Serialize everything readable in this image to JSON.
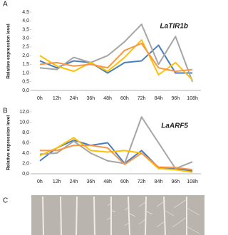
{
  "chart_data": [
    {
      "type": "line",
      "panel": "A",
      "title": "LaTIR1b",
      "y_label": "Relative expression level",
      "categories": [
        "0h",
        "12h",
        "24h",
        "36h",
        "48h",
        "60h",
        "72h",
        "84h",
        "96h",
        "108h"
      ],
      "series": [
        {
          "color": "#4a7ebb",
          "values": [
            1.7,
            1.3,
            1.7,
            1.6,
            1.0,
            1.6,
            1.7,
            2.6,
            1.0,
            1.0
          ]
        },
        {
          "color": "#a5a5a5",
          "values": [
            1.3,
            1.2,
            1.9,
            1.6,
            2.0,
            2.8,
            3.8,
            1.5,
            3.1,
            0.5
          ]
        },
        {
          "color": "#ffc000",
          "values": [
            2.0,
            1.4,
            1.1,
            1.6,
            1.1,
            1.9,
            2.9,
            0.9,
            1.6,
            0.6
          ]
        },
        {
          "color": "#f79646",
          "values": [
            1.5,
            1.6,
            1.4,
            1.5,
            1.3,
            2.3,
            2.7,
            1.3,
            1.1,
            1.2
          ]
        }
      ],
      "ylim": [
        0,
        4.5
      ],
      "yticks": [
        {
          "value": 0,
          "label": "0,0"
        },
        {
          "value": 0.5,
          "label": "0,5"
        },
        {
          "value": 1,
          "label": "1,0"
        },
        {
          "value": 1.5,
          "label": "1,5"
        },
        {
          "value": 2,
          "label": "2,0"
        },
        {
          "value": 2.5,
          "label": "2,5"
        },
        {
          "value": 3,
          "label": "3,0"
        },
        {
          "value": 3.5,
          "label": "3,5"
        },
        {
          "value": 4,
          "label": "4,0"
        },
        {
          "value": 4.5,
          "label": "4,5"
        }
      ]
    },
    {
      "type": "line",
      "panel": "B",
      "title": "LaARF5",
      "y_label": "Relative expression level",
      "categories": [
        "0h",
        "12h",
        "24h",
        "36h",
        "48h",
        "60h",
        "72h",
        "84h",
        "96h",
        "108h"
      ],
      "series": [
        {
          "color": "#4a7ebb",
          "values": [
            2.5,
            5.0,
            6.5,
            5.5,
            6.0,
            2.0,
            4.5,
            1.2,
            1.0,
            0.5
          ]
        },
        {
          "color": "#a5a5a5",
          "values": [
            3.8,
            4.0,
            6.3,
            4.0,
            2.5,
            2.0,
            11.0,
            6.0,
            1.0,
            2.3
          ]
        },
        {
          "color": "#ffc000",
          "values": [
            3.5,
            5.0,
            7.0,
            4.5,
            4.2,
            4.5,
            4.0,
            1.0,
            0.8,
            0.3
          ]
        },
        {
          "color": "#f79646",
          "values": [
            4.5,
            4.5,
            5.5,
            5.5,
            5.0,
            1.8,
            4.0,
            1.3,
            1.2,
            0.8
          ]
        }
      ],
      "ylim": [
        0,
        12
      ],
      "yticks": [
        {
          "value": 0,
          "label": "0,0"
        },
        {
          "value": 2,
          "label": "2,0"
        },
        {
          "value": 4,
          "label": "4,0"
        },
        {
          "value": 6,
          "label": "6,0"
        },
        {
          "value": 8,
          "label": "8,0"
        },
        {
          "value": 10,
          "label": "10,0"
        },
        {
          "value": 12,
          "label": "12,0"
        }
      ]
    }
  ],
  "photo_panel": {
    "panel": "C"
  }
}
